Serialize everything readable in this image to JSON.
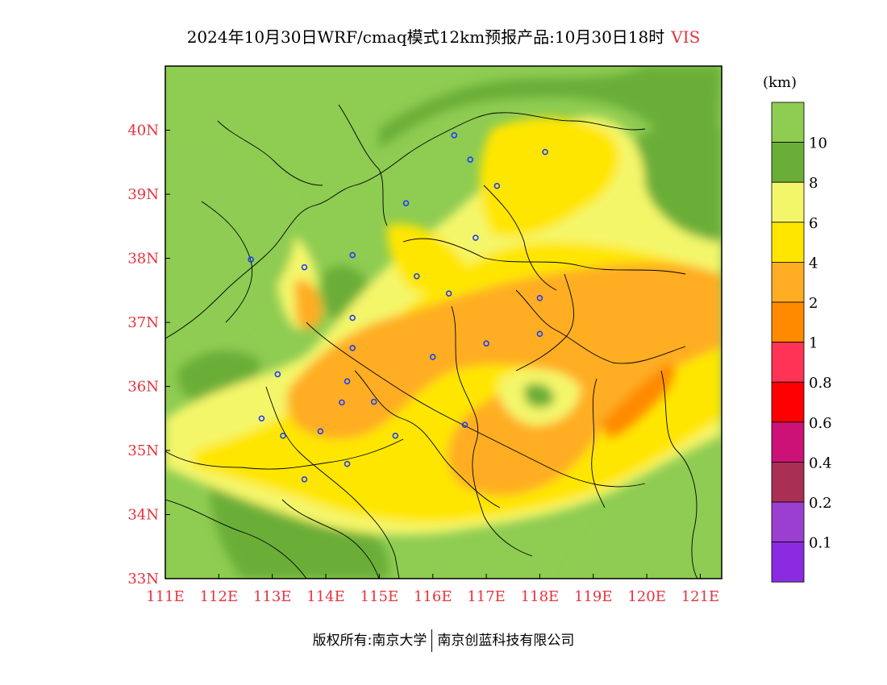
{
  "title": {
    "main": "2024年10月30日WRF/cmaq模式12km预报产品:10月30日18时",
    "variable": "VIS"
  },
  "colors": {
    "axis_label": "#e8323c",
    "frame": "#000000",
    "station": "#1f3ff5"
  },
  "axes": {
    "lon_ticks": [
      "111E",
      "112E",
      "113E",
      "114E",
      "115E",
      "116E",
      "117E",
      "118E",
      "119E",
      "120E",
      "121E"
    ],
    "lat_ticks": [
      "33N",
      "34N",
      "35N",
      "36N",
      "37N",
      "38N",
      "39N",
      "40N"
    ],
    "lon_range": [
      111,
      121.4
    ],
    "lat_range": [
      33,
      41
    ]
  },
  "legend": {
    "unit": "(km)",
    "bins": [
      {
        "color": "#8ecc52"
      },
      {
        "label": "10",
        "color": "#6aae38"
      },
      {
        "label": "8",
        "color": "#f4f66a"
      },
      {
        "label": "6",
        "color": "#ffe600"
      },
      {
        "label": "4",
        "color": "#ffad22"
      },
      {
        "label": "2",
        "color": "#ff8a00"
      },
      {
        "label": "1",
        "color": "#ff3355"
      },
      {
        "label": "0.8",
        "color": "#ff0000"
      },
      {
        "label": "0.6",
        "color": "#cc1277"
      },
      {
        "label": "0.4",
        "color": "#aa2f55"
      },
      {
        "label": "0.2",
        "color": "#9b3fd0"
      },
      {
        "label": "0.1",
        "color": "#8a2be2"
      }
    ]
  },
  "field_colors": {
    "gt10": "#8ecc52",
    "8to10": "#6aae38",
    "6to8": "#f4f66a",
    "4to6": "#ffe600",
    "2to4": "#ffad22",
    "1to2": "#ff8a00"
  },
  "stations": [
    {
      "lon": 116.4,
      "lat": 39.92
    },
    {
      "lon": 118.1,
      "lat": 39.66
    },
    {
      "lon": 116.7,
      "lat": 39.54
    },
    {
      "lon": 117.2,
      "lat": 39.13
    },
    {
      "lon": 115.5,
      "lat": 38.86
    },
    {
      "lon": 116.8,
      "lat": 38.32
    },
    {
      "lon": 112.6,
      "lat": 37.98
    },
    {
      "lon": 113.6,
      "lat": 37.86
    },
    {
      "lon": 114.5,
      "lat": 38.05
    },
    {
      "lon": 115.7,
      "lat": 37.72
    },
    {
      "lon": 116.3,
      "lat": 37.45
    },
    {
      "lon": 118.0,
      "lat": 37.38
    },
    {
      "lon": 114.5,
      "lat": 37.07
    },
    {
      "lon": 118.0,
      "lat": 36.82
    },
    {
      "lon": 114.5,
      "lat": 36.6
    },
    {
      "lon": 117.0,
      "lat": 36.67
    },
    {
      "lon": 116.0,
      "lat": 36.46
    },
    {
      "lon": 113.1,
      "lat": 36.19
    },
    {
      "lon": 114.4,
      "lat": 36.08
    },
    {
      "lon": 114.3,
      "lat": 35.75
    },
    {
      "lon": 114.9,
      "lat": 35.76
    },
    {
      "lon": 112.8,
      "lat": 35.5
    },
    {
      "lon": 116.6,
      "lat": 35.4
    },
    {
      "lon": 113.9,
      "lat": 35.3
    },
    {
      "lon": 113.2,
      "lat": 35.23
    },
    {
      "lon": 115.3,
      "lat": 35.23
    },
    {
      "lon": 114.4,
      "lat": 34.79
    },
    {
      "lon": 113.6,
      "lat": 34.55
    }
  ],
  "footer": {
    "left": "版权所有:南京大学",
    "right": "南京创蓝科技有限公司"
  }
}
